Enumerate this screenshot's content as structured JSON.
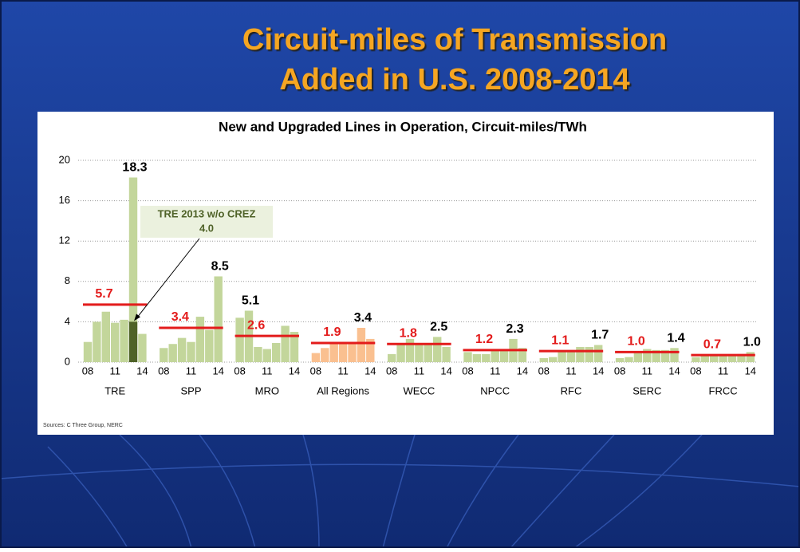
{
  "slide_title": [
    "Circuit-miles of Transmission",
    "Added in U.S. 2008-2014"
  ],
  "chart_data": {
    "type": "bar",
    "title": "New and Upgraded Lines in Operation, Circuit-miles/TWh",
    "years": [
      "08",
      null,
      null,
      "11",
      null,
      null,
      "14"
    ],
    "ylim": [
      0,
      20
    ],
    "yticks": [
      0,
      4,
      8,
      12,
      16,
      20
    ],
    "grid": true,
    "average_color": "#e31b1b",
    "groups": [
      {
        "name": "TRE",
        "color": "#c3d69b",
        "values": [
          2.0,
          4.0,
          5.0,
          3.9,
          4.2,
          18.3,
          2.8
        ],
        "value_labels": [
          null,
          null,
          null,
          null,
          null,
          "18.3",
          null
        ],
        "average": 5.7,
        "average_label": "5.7"
      },
      {
        "name": "SPP",
        "color": "#c3d69b",
        "values": [
          1.4,
          1.8,
          2.4,
          2.0,
          4.5,
          3.2,
          8.5
        ],
        "value_labels": [
          null,
          null,
          null,
          null,
          null,
          null,
          "8.5"
        ],
        "average": 3.4,
        "average_label": "3.4"
      },
      {
        "name": "MRO",
        "color": "#c3d69b",
        "values": [
          4.4,
          5.1,
          1.5,
          1.3,
          1.9,
          3.6,
          3.0
        ],
        "value_labels": [
          null,
          "5.1",
          null,
          null,
          null,
          null,
          null
        ],
        "average": 2.6,
        "average_label": "2.6"
      },
      {
        "name": "All Regions",
        "color": "#fac090",
        "values": [
          0.9,
          1.4,
          1.8,
          1.8,
          2.0,
          3.4,
          2.3
        ],
        "value_labels": [
          null,
          null,
          null,
          null,
          null,
          "3.4",
          null
        ],
        "average": 1.9,
        "average_label": "1.9"
      },
      {
        "name": "WECC",
        "color": "#c3d69b",
        "values": [
          0.8,
          1.8,
          2.3,
          1.8,
          1.8,
          2.5,
          1.5
        ],
        "value_labels": [
          null,
          null,
          null,
          null,
          null,
          "2.5",
          null
        ],
        "average": 1.8,
        "average_label": "1.8"
      },
      {
        "name": "NPCC",
        "color": "#c3d69b",
        "values": [
          1.0,
          0.8,
          0.8,
          1.2,
          1.3,
          2.3,
          1.4
        ],
        "value_labels": [
          null,
          null,
          null,
          null,
          null,
          "2.3",
          null
        ],
        "average": 1.2,
        "average_label": "1.2"
      },
      {
        "name": "RFC",
        "color": "#c3d69b",
        "values": [
          0.4,
          0.5,
          1.0,
          1.2,
          1.5,
          1.5,
          1.7
        ],
        "value_labels": [
          null,
          null,
          null,
          null,
          null,
          null,
          "1.7"
        ],
        "average": 1.1,
        "average_label": "1.1"
      },
      {
        "name": "SERC",
        "color": "#c3d69b",
        "values": [
          0.4,
          0.5,
          1.0,
          1.3,
          1.2,
          1.2,
          1.4
        ],
        "value_labels": [
          null,
          null,
          null,
          null,
          null,
          null,
          "1.4"
        ],
        "average": 1.0,
        "average_label": "1.0"
      },
      {
        "name": "FRCC",
        "color": "#c3d69b",
        "values": [
          0.5,
          0.6,
          0.6,
          0.7,
          0.7,
          0.8,
          1.0
        ],
        "value_labels": [
          null,
          null,
          null,
          null,
          null,
          null,
          "1.0"
        ],
        "average": 0.7,
        "average_label": "0.7"
      }
    ],
    "annotation": {
      "text": "TRE 2013 w/o CREZ",
      "value": 4.0,
      "value_label": "4.0",
      "color": "#4f6228",
      "box_color": "#ebf1de"
    },
    "source": "Sources: C Three Group, NERC"
  }
}
